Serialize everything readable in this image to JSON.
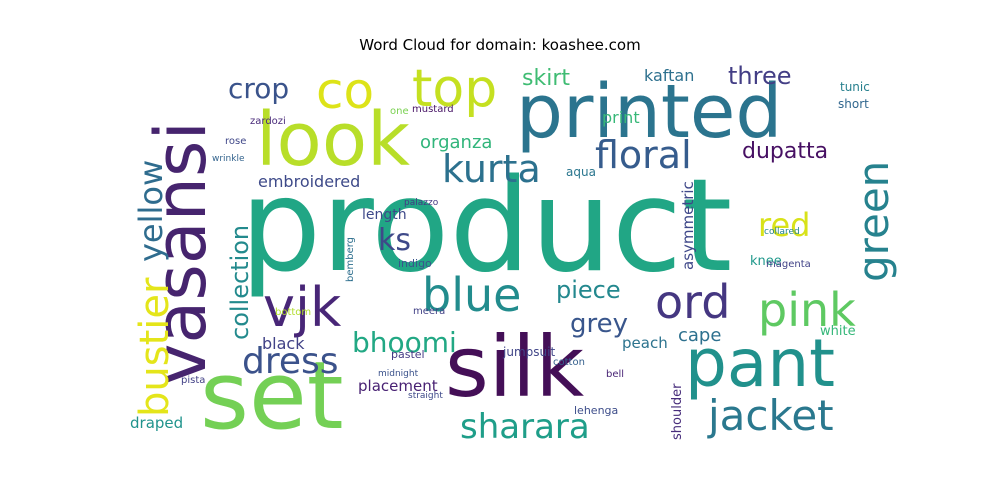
{
  "chart_data": {
    "type": "wordcloud",
    "title": "Word Cloud for domain: koashee.com",
    "background": "#ffffff",
    "colormap": "viridis",
    "words": [
      {
        "text": "product",
        "weight": 1.0,
        "color": "#21a685"
      },
      {
        "text": "set",
        "weight": 0.62,
        "color": "#74d055"
      },
      {
        "text": "silk",
        "weight": 0.55,
        "color": "#440f57"
      },
      {
        "text": "printed",
        "weight": 0.5,
        "color": "#2b748e"
      },
      {
        "text": "look",
        "weight": 0.48,
        "color": "#b8de29"
      },
      {
        "text": "vasansi",
        "weight": 0.46,
        "color": "#46246e"
      },
      {
        "text": "pant",
        "weight": 0.44,
        "color": "#21918c"
      },
      {
        "text": "co",
        "weight": 0.36,
        "color": "#dde318"
      },
      {
        "text": "top",
        "weight": 0.36,
        "color": "#c5e021"
      },
      {
        "text": "vjk",
        "weight": 0.34,
        "color": "#482677"
      },
      {
        "text": "blue",
        "weight": 0.3,
        "color": "#228c8d"
      },
      {
        "text": "ord",
        "weight": 0.3,
        "color": "#453781"
      },
      {
        "text": "pink",
        "weight": 0.3,
        "color": "#5ec962"
      },
      {
        "text": "green",
        "weight": 0.28,
        "color": "#26828e"
      },
      {
        "text": "jacket",
        "weight": 0.28,
        "color": "#2a788e"
      },
      {
        "text": "bustier",
        "weight": 0.26,
        "color": "#e4e51a"
      },
      {
        "text": "kurta",
        "weight": 0.24,
        "color": "#2c718e"
      },
      {
        "text": "floral",
        "weight": 0.24,
        "color": "#365c8d"
      },
      {
        "text": "dress",
        "weight": 0.24,
        "color": "#3b528b"
      },
      {
        "text": "sharara",
        "weight": 0.24,
        "color": "#1f9e89"
      },
      {
        "text": "bhoomi",
        "weight": 0.2,
        "color": "#22a884"
      },
      {
        "text": "yellow",
        "weight": 0.2,
        "color": "#2f6c8e"
      },
      {
        "text": "red",
        "weight": 0.18,
        "color": "#d8e219"
      },
      {
        "text": "ks",
        "weight": 0.18,
        "color": "#3e4989"
      },
      {
        "text": "crop",
        "weight": 0.18,
        "color": "#3a538b"
      },
      {
        "text": "three",
        "weight": 0.16,
        "color": "#433e85"
      },
      {
        "text": "piece",
        "weight": 0.16,
        "color": "#23888e"
      },
      {
        "text": "grey",
        "weight": 0.16,
        "color": "#39568c"
      },
      {
        "text": "skirt",
        "weight": 0.15,
        "color": "#3fbc73"
      },
      {
        "text": "collection",
        "weight": 0.14,
        "color": "#238a8d"
      },
      {
        "text": "dupatta",
        "weight": 0.14,
        "color": "#471063"
      },
      {
        "text": "embroidered",
        "weight": 0.12,
        "color": "#3e4a89"
      },
      {
        "text": "organza",
        "weight": 0.12,
        "color": "#31b57b"
      },
      {
        "text": "cape",
        "weight": 0.12,
        "color": "#2d708e"
      },
      {
        "text": "kaftan",
        "weight": 0.11,
        "color": "#2d708e"
      },
      {
        "text": "asymmetric",
        "weight": 0.1,
        "color": "#3f4889"
      },
      {
        "text": "black",
        "weight": 0.1,
        "color": "#414287"
      },
      {
        "text": "draped",
        "weight": 0.1,
        "color": "#20938c"
      },
      {
        "text": "placement",
        "weight": 0.1,
        "color": "#482173"
      },
      {
        "text": "print",
        "weight": 0.1,
        "color": "#37b878"
      },
      {
        "text": "peach",
        "weight": 0.1,
        "color": "#2c738e"
      },
      {
        "text": "length",
        "weight": 0.1,
        "color": "#3e4989"
      },
      {
        "text": "white",
        "weight": 0.09,
        "color": "#35b779"
      },
      {
        "text": "knee",
        "weight": 0.09,
        "color": "#1f988b"
      },
      {
        "text": "shoulder",
        "weight": 0.09,
        "color": "#472d7b"
      },
      {
        "text": "aqua",
        "weight": 0.08,
        "color": "#2a768e"
      },
      {
        "text": "indigo",
        "weight": 0.08,
        "color": "#3a548c"
      },
      {
        "text": "jumpsuit",
        "weight": 0.08,
        "color": "#404588"
      },
      {
        "text": "tunic",
        "weight": 0.08,
        "color": "#27808e"
      },
      {
        "text": "short",
        "weight": 0.08,
        "color": "#31678e"
      },
      {
        "text": "mustard",
        "weight": 0.07,
        "color": "#471365"
      },
      {
        "text": "lehenga",
        "weight": 0.07,
        "color": "#3d4d8a"
      },
      {
        "text": "one",
        "weight": 0.07,
        "color": "#7ad151"
      },
      {
        "text": "bemberg",
        "weight": 0.07,
        "color": "#2e6f8e"
      },
      {
        "text": "meera",
        "weight": 0.07,
        "color": "#424186"
      },
      {
        "text": "magenta",
        "weight": 0.07,
        "color": "#414287"
      },
      {
        "text": "bell",
        "weight": 0.07,
        "color": "#482475"
      },
      {
        "text": "pastel",
        "weight": 0.07,
        "color": "#443b84"
      },
      {
        "text": "cotton",
        "weight": 0.07,
        "color": "#35608d"
      },
      {
        "text": "zardozi",
        "weight": 0.06,
        "color": "#482979"
      },
      {
        "text": "rose",
        "weight": 0.06,
        "color": "#3f4788"
      },
      {
        "text": "wrinkle",
        "weight": 0.06,
        "color": "#33638d"
      },
      {
        "text": "bottom",
        "weight": 0.06,
        "color": "#b2dd2d"
      },
      {
        "text": "palazzo",
        "weight": 0.06,
        "color": "#443983"
      },
      {
        "text": "pista",
        "weight": 0.06,
        "color": "#424086"
      },
      {
        "text": "midnight",
        "weight": 0.06,
        "color": "#3b528b"
      },
      {
        "text": "straight",
        "weight": 0.06,
        "color": "#3e4989"
      },
      {
        "text": "collared",
        "weight": 0.06,
        "color": "#25848e"
      }
    ]
  }
}
